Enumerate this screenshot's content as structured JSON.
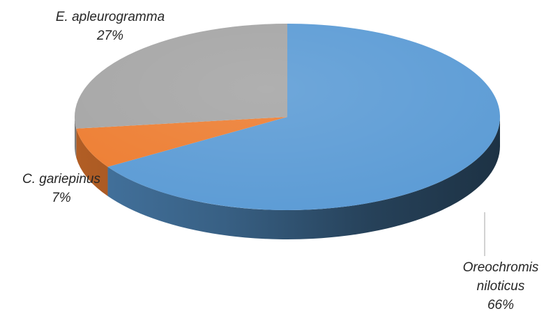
{
  "chart_data": {
    "type": "pie",
    "title": "",
    "three_d": true,
    "slices": [
      {
        "label": "Oreochromis niloticus",
        "label_lines": [
          "Oreochromis",
          "niloticus"
        ],
        "value": 66,
        "value_label": "66%",
        "color": "#5b9bd5"
      },
      {
        "label": "C. gariepinus",
        "label_lines": [
          "C. gariepinus"
        ],
        "value": 7,
        "value_label": "7%",
        "color": "#ed7d31"
      },
      {
        "label": "E. apleurogramma",
        "label_lines": [
          "E. apleurogramma"
        ],
        "value": 27,
        "value_label": "27%",
        "color": "#a5a5a5"
      }
    ],
    "legend": "none"
  }
}
